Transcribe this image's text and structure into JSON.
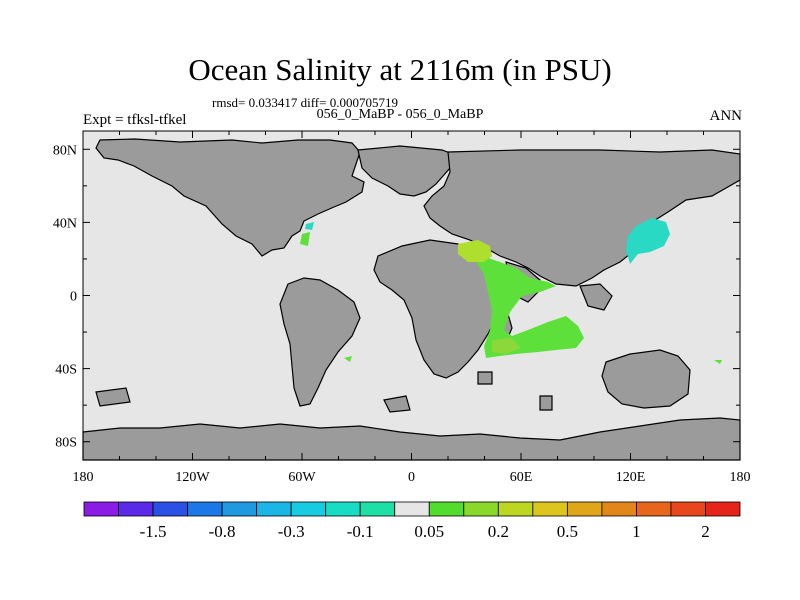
{
  "title": "Ocean Salinity at 2116m (in PSU)",
  "stats_text": "rmsd= 0.033417 diff= 0.000705719",
  "subtitle": "056_0_MaBP - 056_0_MaBP",
  "left_label": "Expt = tfksl-tfkel",
  "right_label": "ANN",
  "map": {
    "lon_range": [
      -180,
      180
    ],
    "lat_range": [
      -90,
      90
    ],
    "x_ticks": [
      {
        "lon": -180,
        "label": "180"
      },
      {
        "lon": -120,
        "label": "120W"
      },
      {
        "lon": -60,
        "label": "60W"
      },
      {
        "lon": 0,
        "label": "0"
      },
      {
        "lon": 60,
        "label": "60E"
      },
      {
        "lon": 120,
        "label": "120E"
      },
      {
        "lon": 180,
        "label": "180"
      }
    ],
    "y_ticks": [
      {
        "lat": 80,
        "label": "80N"
      },
      {
        "lat": 40,
        "label": "40N"
      },
      {
        "lat": 0,
        "label": "0"
      },
      {
        "lat": -40,
        "label": "40S"
      },
      {
        "lat": -80,
        "label": "80S"
      }
    ],
    "colors": {
      "ocean": "#e6e6e6",
      "land": "#9b9b9b",
      "coast": "#000000"
    },
    "anomaly_fields": [
      {
        "region": "Tethys / Indian Ocean",
        "color": "#5ee03a"
      },
      {
        "region": "Arabian margin",
        "color": "#aede2e"
      },
      {
        "region": "Indian Ocean south",
        "color": "#8cd83a"
      },
      {
        "region": "East Asian margin",
        "color": "#2ad9c4"
      }
    ]
  },
  "colorbar": {
    "colors": [
      "#8a1ce6",
      "#5a2ae8",
      "#2a50e6",
      "#1c78e6",
      "#1f9ae2",
      "#1bb6e6",
      "#17cce0",
      "#19dcc4",
      "#1ee0a6",
      "#e6e6e6",
      "#52dd2e",
      "#8ad82a",
      "#bcd622",
      "#dcc61e",
      "#e0a61a",
      "#e3861a",
      "#e6661b",
      "#e8461c",
      "#e5241a"
    ],
    "labels": [
      {
        "after_box": 2,
        "text": "-1.5"
      },
      {
        "after_box": 4,
        "text": "-0.8"
      },
      {
        "after_box": 6,
        "text": "-0.3"
      },
      {
        "after_box": 8,
        "text": "-0.1"
      },
      {
        "after_box": 10,
        "text": "0.05"
      },
      {
        "after_box": 12,
        "text": "0.2"
      },
      {
        "after_box": 14,
        "text": "0.5"
      },
      {
        "after_box": 16,
        "text": "1"
      },
      {
        "after_box": 18,
        "text": "2"
      }
    ]
  }
}
